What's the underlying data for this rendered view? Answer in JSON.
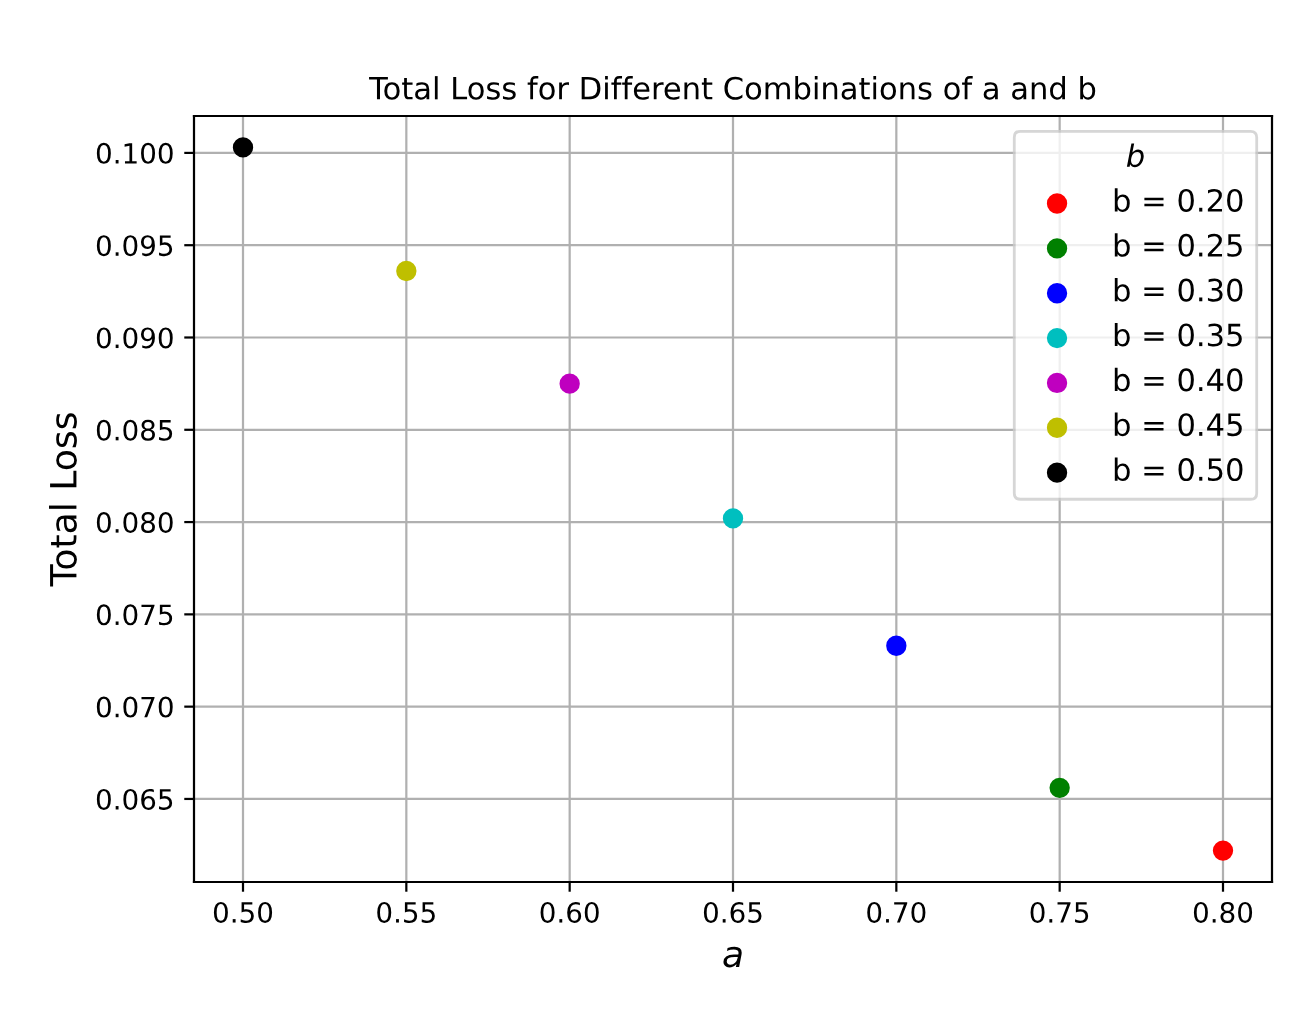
{
  "chart_data": {
    "type": "scatter",
    "title": "Total Loss for Different Combinations of a and b",
    "xlabel": "a",
    "ylabel": "Total Loss",
    "legend_title": "b",
    "series": [
      {
        "name": "b = 0.20",
        "color": "#ff0000",
        "x": [
          0.8
        ],
        "values": [
          0.0622
        ]
      },
      {
        "name": "b = 0.25",
        "color": "#008000",
        "x": [
          0.75
        ],
        "values": [
          0.0656
        ]
      },
      {
        "name": "b = 0.30",
        "color": "#0000ff",
        "x": [
          0.7
        ],
        "values": [
          0.0733
        ]
      },
      {
        "name": "b = 0.35",
        "color": "#00bfbf",
        "x": [
          0.65
        ],
        "values": [
          0.0802
        ]
      },
      {
        "name": "b = 0.40",
        "color": "#bf00bf",
        "x": [
          0.6
        ],
        "values": [
          0.0875
        ]
      },
      {
        "name": "b = 0.45",
        "color": "#bfbf00",
        "x": [
          0.55
        ],
        "values": [
          0.0936
        ]
      },
      {
        "name": "b = 0.50",
        "color": "#000000",
        "x": [
          0.5
        ],
        "values": [
          0.1003
        ]
      }
    ],
    "xlim": [
      0.485,
      0.815
    ],
    "xticks": [
      {
        "value": 0.5,
        "label": "0.50"
      },
      {
        "value": 0.55,
        "label": "0.55"
      },
      {
        "value": 0.6,
        "label": "0.60"
      },
      {
        "value": 0.65,
        "label": "0.65"
      },
      {
        "value": 0.7,
        "label": "0.70"
      },
      {
        "value": 0.75,
        "label": "0.75"
      },
      {
        "value": 0.8,
        "label": "0.80"
      }
    ],
    "ylim": [
      0.0605,
      0.102
    ],
    "yticks": [
      {
        "value": 0.065,
        "label": "0.065"
      },
      {
        "value": 0.07,
        "label": "0.070"
      },
      {
        "value": 0.075,
        "label": "0.075"
      },
      {
        "value": 0.08,
        "label": "0.080"
      },
      {
        "value": 0.085,
        "label": "0.085"
      },
      {
        "value": 0.09,
        "label": "0.090"
      },
      {
        "value": 0.095,
        "label": "0.095"
      },
      {
        "value": 0.1,
        "label": "0.100"
      }
    ],
    "grid": true,
    "legend": "top right",
    "marker": "circle"
  }
}
